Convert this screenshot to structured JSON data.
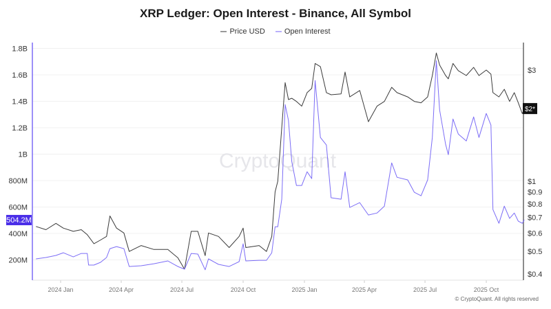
{
  "chart_data": {
    "type": "line",
    "title": "XRP Ledger: Open Interest - Binance, All Symbol",
    "legend_placement": "top",
    "grid": "horizontal",
    "watermark": "CryptoQuant",
    "footer": "© CryptoQuant. All rights reserved",
    "x_ticks": [
      {
        "date": "2024-01-01",
        "label": "2024 Jan"
      },
      {
        "date": "2024-04-01",
        "label": "2024 Apr"
      },
      {
        "date": "2024-07-01",
        "label": "2024 Jul"
      },
      {
        "date": "2024-10-01",
        "label": "2024 Oct"
      },
      {
        "date": "2025-01-01",
        "label": "2025 Jan"
      },
      {
        "date": "2025-04-01",
        "label": "2025 Apr"
      },
      {
        "date": "2025-07-01",
        "label": "2025 Jul"
      },
      {
        "date": "2025-10-01",
        "label": "2025 Oct"
      }
    ],
    "xlim": [
      "2023-11-22",
      "2025-11-28"
    ],
    "y_left": {
      "scale": "linear",
      "ylim": [
        0,
        1950
      ],
      "unit": "M",
      "ticks": [
        {
          "v": 200,
          "label": "200M"
        },
        {
          "v": 400,
          "label": "400M"
        },
        {
          "v": 600,
          "label": "600M"
        },
        {
          "v": 800,
          "label": "800M"
        },
        {
          "v": 1000,
          "label": "1B"
        },
        {
          "v": 1200,
          "label": "1.2B"
        },
        {
          "v": 1400,
          "label": "1.4B"
        },
        {
          "v": 1600,
          "label": "1.6B"
        },
        {
          "v": 1800,
          "label": "1.8B"
        }
      ],
      "current_label": "504.2M",
      "color": "#7b6cf6",
      "label_bg": "#4a2ee8"
    },
    "y_right": {
      "scale": "log",
      "ylim": [
        0.38,
        4.0
      ],
      "ticks": [
        {
          "v": 0.4,
          "label": "$0.4"
        },
        {
          "v": 0.5,
          "label": "$0.5"
        },
        {
          "v": 0.6,
          "label": "$0.6"
        },
        {
          "v": 0.7,
          "label": "$0.7"
        },
        {
          "v": 0.8,
          "label": "$0.8"
        },
        {
          "v": 0.9,
          "label": "$0.9"
        },
        {
          "v": 1,
          "label": "$1"
        },
        {
          "v": 3,
          "label": "$3"
        }
      ],
      "current_label": "$2*",
      "color": "#555555",
      "label_bg": "#111111"
    },
    "series": [
      {
        "name": "Price USD",
        "axis": "right",
        "color": "#3a3a3a",
        "points": [
          [
            "2023-11-25",
            0.64
          ],
          [
            "2023-12-10",
            0.62
          ],
          [
            "2023-12-25",
            0.66
          ],
          [
            "2024-01-05",
            0.63
          ],
          [
            "2024-01-20",
            0.61
          ],
          [
            "2024-02-01",
            0.62
          ],
          [
            "2024-02-10",
            0.59
          ],
          [
            "2024-02-20",
            0.54
          ],
          [
            "2024-03-01",
            0.56
          ],
          [
            "2024-03-10",
            0.58
          ],
          [
            "2024-03-15",
            0.71
          ],
          [
            "2024-03-25",
            0.63
          ],
          [
            "2024-04-05",
            0.6
          ],
          [
            "2024-04-13",
            0.5
          ],
          [
            "2024-05-01",
            0.53
          ],
          [
            "2024-05-20",
            0.51
          ],
          [
            "2024-06-10",
            0.51
          ],
          [
            "2024-06-25",
            0.47
          ],
          [
            "2024-07-05",
            0.42
          ],
          [
            "2024-07-15",
            0.61
          ],
          [
            "2024-07-25",
            0.61
          ],
          [
            "2024-08-05",
            0.48
          ],
          [
            "2024-08-10",
            0.6
          ],
          [
            "2024-08-25",
            0.58
          ],
          [
            "2024-09-10",
            0.52
          ],
          [
            "2024-09-25",
            0.58
          ],
          [
            "2024-10-01",
            0.63
          ],
          [
            "2024-10-05",
            0.52
          ],
          [
            "2024-10-25",
            0.53
          ],
          [
            "2024-11-05",
            0.5
          ],
          [
            "2024-11-13",
            0.58
          ],
          [
            "2024-11-18",
            0.9
          ],
          [
            "2024-11-22",
            1.0
          ],
          [
            "2024-11-28",
            1.7
          ],
          [
            "2024-12-03",
            2.65
          ],
          [
            "2024-12-08",
            2.24
          ],
          [
            "2024-12-13",
            2.27
          ],
          [
            "2024-12-20",
            2.2
          ],
          [
            "2024-12-28",
            2.1
          ],
          [
            "2025-01-05",
            2.4
          ],
          [
            "2025-01-12",
            2.5
          ],
          [
            "2025-01-17",
            3.2
          ],
          [
            "2025-01-25",
            3.1
          ],
          [
            "2025-02-03",
            2.4
          ],
          [
            "2025-02-10",
            2.35
          ],
          [
            "2025-02-25",
            2.37
          ],
          [
            "2025-03-03",
            2.94
          ],
          [
            "2025-03-10",
            2.3
          ],
          [
            "2025-03-25",
            2.45
          ],
          [
            "2025-04-07",
            1.8
          ],
          [
            "2025-04-20",
            2.1
          ],
          [
            "2025-05-01",
            2.2
          ],
          [
            "2025-05-12",
            2.53
          ],
          [
            "2025-05-20",
            2.4
          ],
          [
            "2025-06-05",
            2.3
          ],
          [
            "2025-06-15",
            2.2
          ],
          [
            "2025-06-25",
            2.17
          ],
          [
            "2025-07-05",
            2.3
          ],
          [
            "2025-07-12",
            2.84
          ],
          [
            "2025-07-18",
            3.55
          ],
          [
            "2025-07-23",
            3.15
          ],
          [
            "2025-08-01",
            2.84
          ],
          [
            "2025-08-05",
            2.75
          ],
          [
            "2025-08-12",
            3.2
          ],
          [
            "2025-08-20",
            2.98
          ],
          [
            "2025-09-01",
            2.84
          ],
          [
            "2025-09-12",
            3.08
          ],
          [
            "2025-09-20",
            2.84
          ],
          [
            "2025-10-01",
            3.0
          ],
          [
            "2025-10-08",
            2.88
          ],
          [
            "2025-10-11",
            2.4
          ],
          [
            "2025-10-20",
            2.3
          ],
          [
            "2025-10-28",
            2.48
          ],
          [
            "2025-11-05",
            2.2
          ],
          [
            "2025-11-12",
            2.4
          ],
          [
            "2025-11-18",
            2.17
          ],
          [
            "2025-11-24",
            1.95
          ],
          [
            "2025-11-27",
            2.05
          ]
        ]
      },
      {
        "name": "Open Interest",
        "axis": "left",
        "color": "#7b6cf6",
        "points": [
          [
            "2023-11-25",
            208
          ],
          [
            "2023-12-10",
            218
          ],
          [
            "2023-12-25",
            234
          ],
          [
            "2024-01-05",
            254
          ],
          [
            "2024-01-20",
            223
          ],
          [
            "2024-02-01",
            249
          ],
          [
            "2024-02-10",
            249
          ],
          [
            "2024-02-12",
            161
          ],
          [
            "2024-02-20",
            161
          ],
          [
            "2024-03-01",
            182
          ],
          [
            "2024-03-10",
            218
          ],
          [
            "2024-03-15",
            285
          ],
          [
            "2024-03-25",
            301
          ],
          [
            "2024-04-05",
            285
          ],
          [
            "2024-04-13",
            150
          ],
          [
            "2024-05-01",
            156
          ],
          [
            "2024-05-20",
            171
          ],
          [
            "2024-06-10",
            192
          ],
          [
            "2024-06-25",
            150
          ],
          [
            "2024-07-05",
            130
          ],
          [
            "2024-07-15",
            249
          ],
          [
            "2024-07-25",
            244
          ],
          [
            "2024-08-05",
            125
          ],
          [
            "2024-08-10",
            208
          ],
          [
            "2024-08-25",
            166
          ],
          [
            "2024-09-10",
            150
          ],
          [
            "2024-09-25",
            187
          ],
          [
            "2024-10-01",
            322
          ],
          [
            "2024-10-05",
            192
          ],
          [
            "2024-10-25",
            197
          ],
          [
            "2024-11-05",
            197
          ],
          [
            "2024-11-13",
            254
          ],
          [
            "2024-11-18",
            451
          ],
          [
            "2024-11-22",
            451
          ],
          [
            "2024-11-28",
            659
          ],
          [
            "2024-12-03",
            1375
          ],
          [
            "2024-12-08",
            1256
          ],
          [
            "2024-12-13",
            945
          ],
          [
            "2024-12-20",
            763
          ],
          [
            "2024-12-28",
            763
          ],
          [
            "2025-01-05",
            867
          ],
          [
            "2025-01-12",
            815
          ],
          [
            "2025-01-17",
            1557
          ],
          [
            "2025-01-25",
            1126
          ],
          [
            "2025-02-03",
            1069
          ],
          [
            "2025-02-10",
            670
          ],
          [
            "2025-02-25",
            659
          ],
          [
            "2025-03-03",
            867
          ],
          [
            "2025-03-10",
            597
          ],
          [
            "2025-03-25",
            633
          ],
          [
            "2025-04-07",
            540
          ],
          [
            "2025-04-20",
            555
          ],
          [
            "2025-05-01",
            607
          ],
          [
            "2025-05-12",
            934
          ],
          [
            "2025-05-20",
            825
          ],
          [
            "2025-06-05",
            805
          ],
          [
            "2025-06-15",
            711
          ],
          [
            "2025-06-25",
            685
          ],
          [
            "2025-07-05",
            805
          ],
          [
            "2025-07-12",
            1126
          ],
          [
            "2025-07-18",
            1707
          ],
          [
            "2025-07-23",
            1334
          ],
          [
            "2025-08-01",
            1074
          ],
          [
            "2025-08-05",
            996
          ],
          [
            "2025-08-12",
            1266
          ],
          [
            "2025-08-20",
            1152
          ],
          [
            "2025-09-01",
            1100
          ],
          [
            "2025-09-12",
            1282
          ],
          [
            "2025-09-20",
            1126
          ],
          [
            "2025-10-01",
            1308
          ],
          [
            "2025-10-08",
            1220
          ],
          [
            "2025-10-11",
            581
          ],
          [
            "2025-10-20",
            477
          ],
          [
            "2025-10-28",
            607
          ],
          [
            "2025-11-05",
            514
          ],
          [
            "2025-11-12",
            555
          ],
          [
            "2025-11-18",
            493
          ],
          [
            "2025-11-24",
            477
          ],
          [
            "2025-11-27",
            504
          ]
        ]
      }
    ]
  }
}
